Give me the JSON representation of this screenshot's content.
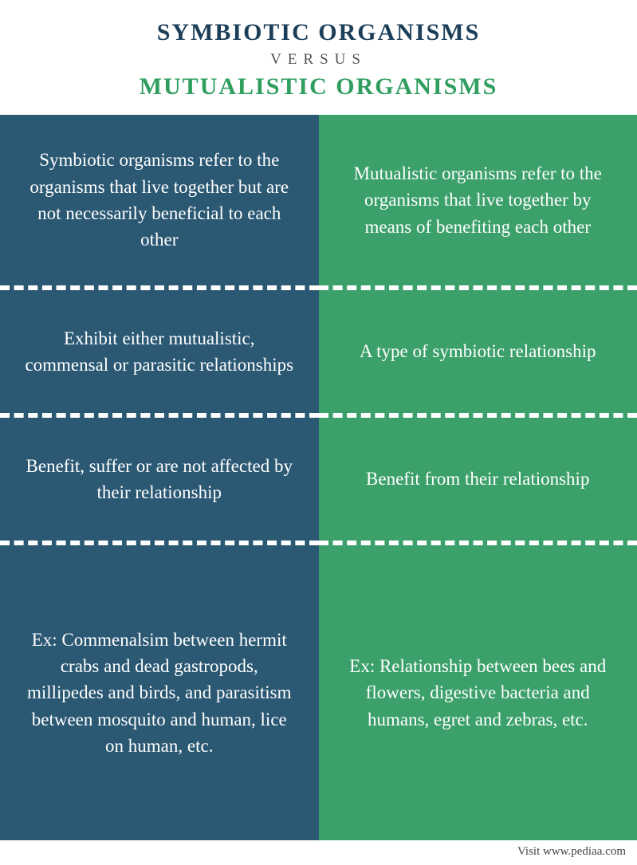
{
  "header": {
    "title_a": "SYMBIOTIC ORGANISMS",
    "versus": "VERSUS",
    "title_b": "MUTUALISTIC ORGANISMS",
    "color_a": "#1b3e59",
    "color_b": "#2f9e5f"
  },
  "columns": {
    "left": {
      "bg": "#2b5873",
      "cells": [
        "Symbiotic organisms refer to the organisms that live together but are not necessarily beneficial to each other",
        "Exhibit either mutualistic, commensal or parasitic relationships",
        "Benefit, suffer or are not affected by their relationship",
        "Ex: Commenalsim between hermit crabs and dead gastropods, millipedes and birds, and parasitism between mosquito and human, lice on human, etc."
      ]
    },
    "right": {
      "bg": "#3ba06a",
      "cells": [
        "Mutualistic organisms refer to the organisms that live together by means of benefiting each other",
        "A type of symbiotic relationship",
        "Benefit from their relationship",
        "Ex: Relationship between bees and flowers, digestive bacteria and humans, egret and zebras, etc."
      ]
    }
  },
  "footer": "Visit www.pediaa.com",
  "style": {
    "dash_color": "#ffffff",
    "body_font": "Georgia, serif",
    "cell_fontsize": 23,
    "title_fontsize": 30
  }
}
